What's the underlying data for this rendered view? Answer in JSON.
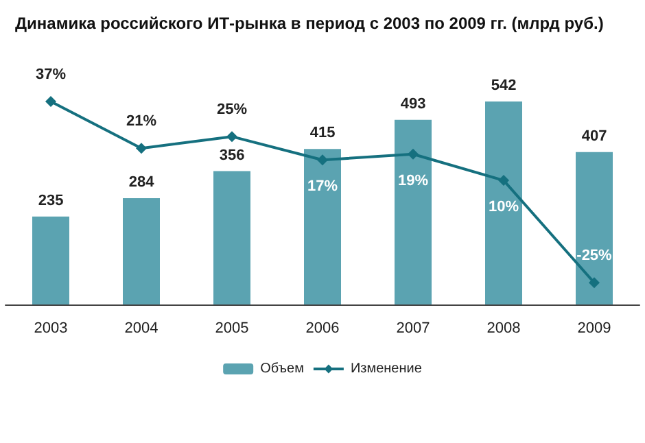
{
  "chart_data": {
    "type": "bar",
    "title": "Динамика российского ИТ-рынка в период с 2003 по 2009 гг. (млрд руб.)",
    "categories": [
      "2003",
      "2004",
      "2005",
      "2006",
      "2007",
      "2008",
      "2009"
    ],
    "series": [
      {
        "name": "Объем",
        "color": "#5ba3b1",
        "values": [
          235,
          284,
          356,
          415,
          493,
          542,
          407
        ]
      },
      {
        "name": "Изменение",
        "type": "line",
        "axis": "y2",
        "color": "#15707f",
        "marker": "diamond",
        "values": [
          37,
          21,
          25,
          17,
          19,
          10,
          -25
        ],
        "value_labels": [
          "37%",
          "21%",
          "25%",
          "17%",
          "19%",
          "10%",
          "-25%"
        ]
      }
    ],
    "data_labels": true,
    "legend": "bottom"
  }
}
